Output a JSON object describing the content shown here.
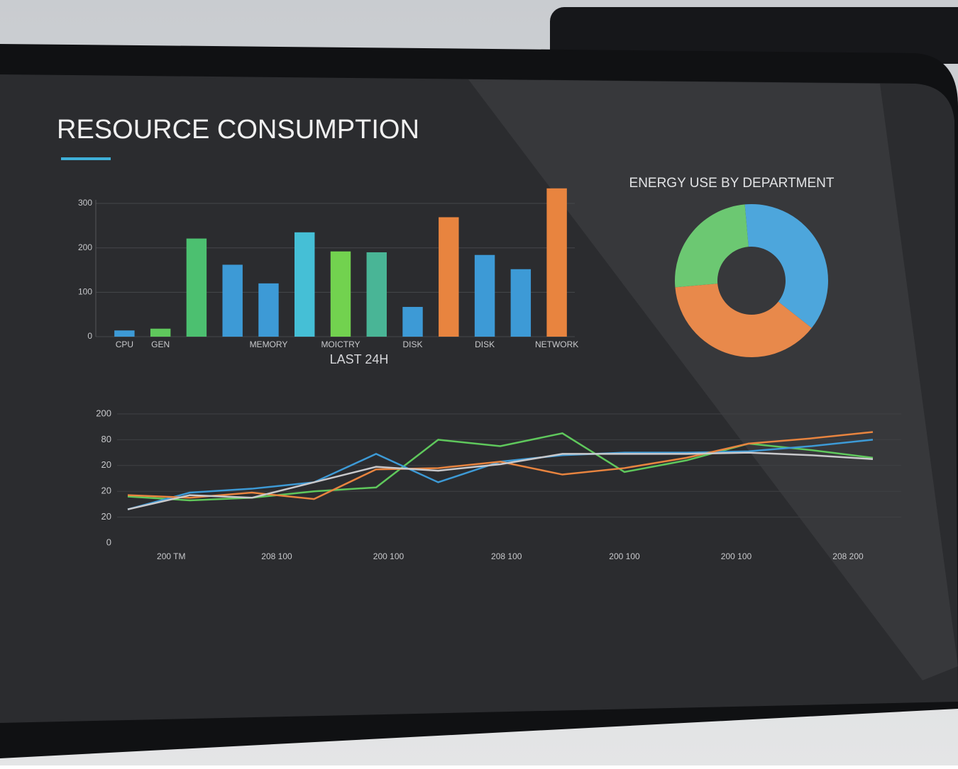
{
  "header": {
    "title": "RESOURCE CONSUMPTION"
  },
  "chart_data": [
    {
      "type": "bar",
      "x_label": "LAST 24H",
      "categories": [
        "CPU",
        "GEN",
        null,
        null,
        "MEMORY",
        null,
        "MOICTRY",
        null,
        "DISK",
        null,
        "DISK",
        null,
        "NETWORK"
      ],
      "values": [
        14,
        18,
        221,
        162,
        120,
        235,
        192,
        190,
        67,
        269,
        184,
        152,
        334
      ],
      "colors": [
        "#3d9ad6",
        "#5fc85c",
        "#4cc070",
        "#3d9ad6",
        "#3d9ad6",
        "#45bfd6",
        "#72d24f",
        "#49b596",
        "#3d9ad6",
        "#e8843f",
        "#3d9ad6",
        "#3d9ad6",
        "#e8843f"
      ],
      "ylim": [
        0,
        340
      ],
      "yticks": [
        0,
        100,
        200,
        300
      ],
      "grid": true
    },
    {
      "type": "pie",
      "title": "ENERGY USE BY DEPARTMENT",
      "values": [
        37,
        38,
        25
      ],
      "colors": [
        "#4da6dc",
        "#e8894b",
        "#6cc872"
      ],
      "donut": true
    },
    {
      "type": "line",
      "x": [
        0,
        1,
        2,
        3,
        4,
        5,
        6,
        7,
        8,
        9,
        10,
        11,
        12
      ],
      "series": [
        {
          "color": "#5fc85c",
          "values": [
            36,
            33,
            35,
            40,
            43,
            80,
            75,
            85,
            55,
            64,
            77,
            72,
            66
          ]
        },
        {
          "color": "#3d9ad6",
          "values": [
            26,
            39,
            42,
            47,
            69,
            47,
            63,
            68,
            70,
            70,
            71,
            75,
            80
          ]
        },
        {
          "color": "#e8843f",
          "values": [
            37,
            35,
            39,
            34,
            57,
            58,
            63,
            53,
            58,
            66,
            77,
            81,
            86
          ]
        },
        {
          "color": "#c9c9cc",
          "values": [
            26,
            37,
            35,
            47,
            59,
            56,
            61,
            69,
            69,
            69,
            70,
            68,
            65
          ]
        }
      ],
      "xlim": [
        0,
        12
      ],
      "xticks": [
        {
          "value": 0.7,
          "label": "200 TM"
        },
        {
          "value": 2.4,
          "label": "208 100"
        },
        {
          "value": 4.2,
          "label": "200 100"
        },
        {
          "value": 6.1,
          "label": "208 100"
        },
        {
          "value": 8,
          "label": "200 100"
        },
        {
          "value": 9.8,
          "label": "200 100"
        },
        {
          "value": 11.6,
          "label": "208 200"
        }
      ],
      "ylim": [
        0,
        100
      ],
      "yticks": [
        0,
        20,
        {
          "value": 40,
          "label": "20"
        },
        {
          "value": 60,
          "label": "20"
        },
        80,
        {
          "value": 100,
          "label": "200"
        }
      ],
      "grid": true
    }
  ]
}
